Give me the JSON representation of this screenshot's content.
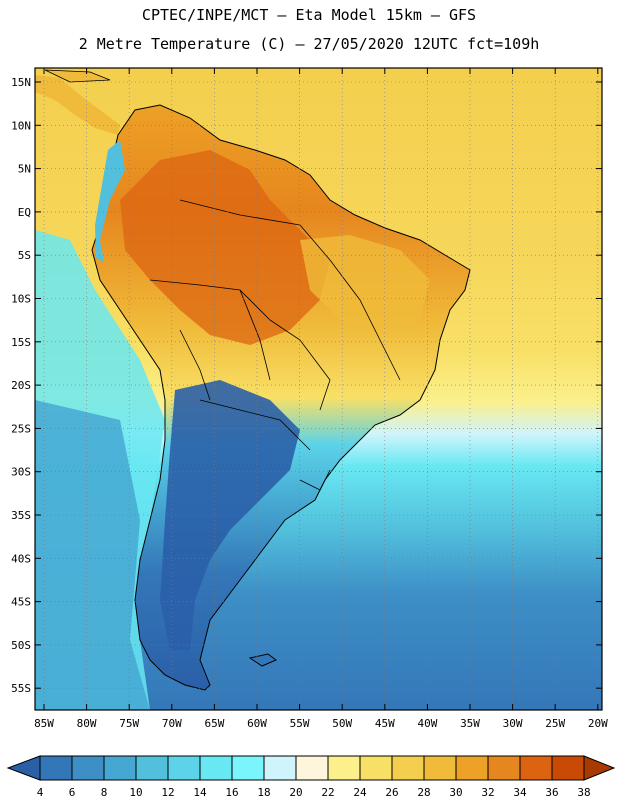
{
  "header": {
    "line1": "CPTEC/INPE/MCT –  Eta Model 15km – GFS",
    "line2": "2 Metre Temperature (C) – 27/05/2020 12UTC fct=109h"
  },
  "axes": {
    "lat_labels": [
      "15N",
      "10N",
      "5N",
      "EQ",
      "5S",
      "10S",
      "15S",
      "20S",
      "25S",
      "30S",
      "35S",
      "40S",
      "45S",
      "50S",
      "55S"
    ],
    "lon_labels": [
      "85W",
      "80W",
      "75W",
      "70W",
      "65W",
      "60W",
      "55W",
      "50W",
      "45W",
      "40W",
      "35W",
      "30W",
      "25W",
      "20W"
    ]
  },
  "colorbar": {
    "labels": [
      "4",
      "6",
      "8",
      "10",
      "12",
      "14",
      "16",
      "18",
      "20",
      "22",
      "24",
      "26",
      "28",
      "30",
      "32",
      "34",
      "36",
      "38"
    ],
    "colors": [
      "#2a5fa8",
      "#3477b8",
      "#3d8fc6",
      "#46a8d2",
      "#52bfdc",
      "#5cd3e8",
      "#68e8f2",
      "#7af5fb",
      "#cff4fb",
      "#fdf6dd",
      "#fbf08c",
      "#f8e066",
      "#f4cf4e",
      "#f0bb3a",
      "#eda126",
      "#e6861e",
      "#dc6411",
      "#c94a05",
      "#a83a00"
    ]
  },
  "palette": {
    "ocean_warm": "#f4cf4e",
    "land_hot": "#e6861e",
    "land_cold": "#2a5fa8",
    "ocean_cold": "#3477b8",
    "map_frame": "#000000"
  }
}
